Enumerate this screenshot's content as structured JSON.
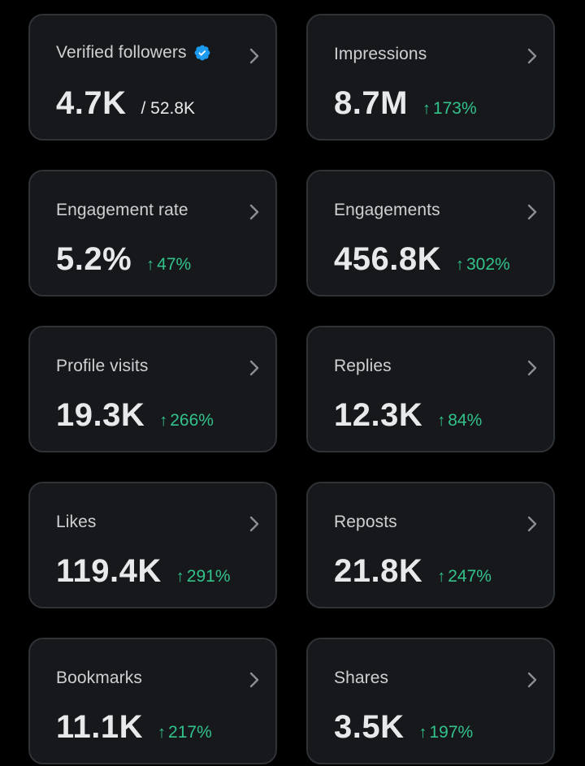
{
  "theme": {
    "background": "#000000",
    "card": "#16181c",
    "border": "#2f3336",
    "text": "#e7e9ea",
    "positive": "#32c28a",
    "verified": "#1d9bf0"
  },
  "cards": [
    {
      "label": "Verified followers",
      "value": "4.7K",
      "sub": "/ 52.8K",
      "verified_icon": "verified-badge-icon",
      "chevron_icon": "chevron-right-icon"
    },
    {
      "label": "Impressions",
      "value": "8.7M",
      "delta": "173%",
      "delta_arrow": "↑",
      "chevron_icon": "chevron-right-icon"
    },
    {
      "label": "Engagement rate",
      "value": "5.2%",
      "delta": "47%",
      "delta_arrow": "↑",
      "chevron_icon": "chevron-right-icon"
    },
    {
      "label": "Engagements",
      "value": "456.8K",
      "delta": "302%",
      "delta_arrow": "↑",
      "chevron_icon": "chevron-right-icon"
    },
    {
      "label": "Profile visits",
      "value": "19.3K",
      "delta": "266%",
      "delta_arrow": "↑",
      "chevron_icon": "chevron-right-icon"
    },
    {
      "label": "Replies",
      "value": "12.3K",
      "delta": "84%",
      "delta_arrow": "↑",
      "chevron_icon": "chevron-right-icon"
    },
    {
      "label": "Likes",
      "value": "119.4K",
      "delta": "291%",
      "delta_arrow": "↑",
      "chevron_icon": "chevron-right-icon"
    },
    {
      "label": "Reposts",
      "value": "21.8K",
      "delta": "247%",
      "delta_arrow": "↑",
      "chevron_icon": "chevron-right-icon"
    },
    {
      "label": "Bookmarks",
      "value": "11.1K",
      "delta": "217%",
      "delta_arrow": "↑",
      "chevron_icon": "chevron-right-icon"
    },
    {
      "label": "Shares",
      "value": "3.5K",
      "delta": "197%",
      "delta_arrow": "↑",
      "chevron_icon": "chevron-right-icon"
    }
  ]
}
